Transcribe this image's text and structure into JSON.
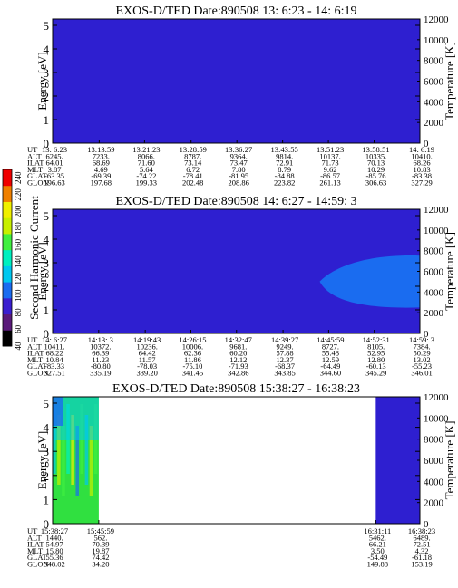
{
  "chart_data": [
    {
      "type": "heatmap",
      "title": "EXOS-D/TED   Date:890508  13: 6:23 - 14: 6:19",
      "ylabel": "Energy [eV]",
      "y2label": "Temperature [K]",
      "ylim": [
        0,
        5
      ],
      "y2lim": [
        0,
        12000
      ],
      "yticks": [
        0,
        1,
        2,
        3,
        4,
        5
      ],
      "y2ticks": [
        0,
        2000,
        4000,
        6000,
        8000,
        10000,
        12000
      ],
      "background_color": "#2e1fd0",
      "regions": [],
      "ephemeris_rows": [
        "UT",
        "ALT",
        "ILAT",
        "MLT",
        "GLAT",
        "GLON"
      ],
      "ephemeris_columns": [
        [
          "13: 6:23",
          "6245.",
          "64.01",
          "3.87",
          "-63.35",
          "196.63"
        ],
        [
          "13:13:59",
          "7233.",
          "68.69",
          "4.69",
          "-69.39",
          "197.68"
        ],
        [
          "13:21:23",
          "8066.",
          "71.60",
          "5.64",
          "-74.22",
          "199.33"
        ],
        [
          "13:28:59",
          "8787.",
          "73.14",
          "6.72",
          "-78.41",
          "202.48"
        ],
        [
          "13:36:27",
          "9364.",
          "73.47",
          "7.80",
          "-81.95",
          "208.86"
        ],
        [
          "13:43:55",
          "9814.",
          "72.91",
          "8.79",
          "-84.88",
          "223.82"
        ],
        [
          "13:51:23",
          "10137.",
          "71.73",
          "9.62",
          "-86.57",
          "261.13"
        ],
        [
          "13:58:51",
          "10335.",
          "70.13",
          "10.29",
          "-85.76",
          "306.63"
        ],
        [
          "14: 6:19",
          "10410.",
          "68.26",
          "10.83",
          "-83.38",
          "327.29"
        ]
      ]
    },
    {
      "type": "heatmap",
      "title": "EXOS-D/TED   Date:890508  14: 6:27 - 14:59: 3",
      "ylabel": "Energy [eV]",
      "y2label": "Temperature [K]",
      "ylim": [
        0,
        5
      ],
      "y2lim": [
        0,
        12000
      ],
      "yticks": [
        0,
        1,
        2,
        3,
        4,
        5
      ],
      "y2ticks": [
        0,
        2000,
        4000,
        6000,
        8000,
        10000,
        12000
      ],
      "background_color": "#2e1fd0",
      "regions": [
        {
          "ut_start": "14:46:00",
          "ut_end": "14:59: 3",
          "energy_min": 1.1,
          "energy_max": 3.3,
          "color": "#1a6cf0"
        }
      ],
      "ephemeris_rows": [
        "UT",
        "ALT",
        "ILAT",
        "MLT",
        "GLAT",
        "GLON"
      ],
      "ephemeris_columns": [
        [
          "14: 6:27",
          "10411.",
          "68.22",
          "10.84",
          "-83.33",
          "327.51"
        ],
        [
          "14:13: 3",
          "10372.",
          "66.39",
          "11.23",
          "-80.80",
          "335.19"
        ],
        [
          "14:19:43",
          "10236.",
          "64.42",
          "11.57",
          "-78.03",
          "339.20"
        ],
        [
          "14:26:15",
          "10006.",
          "62.36",
          "11.86",
          "-75.10",
          "341.45"
        ],
        [
          "14:32:47",
          "9681.",
          "60.20",
          "12.12",
          "-71.93",
          "342.86"
        ],
        [
          "14:39:27",
          "9249.",
          "57.88",
          "12.37",
          "-68.37",
          "343.85"
        ],
        [
          "14:45:59",
          "8727.",
          "55.48",
          "12.59",
          "-64.49",
          "344.60"
        ],
        [
          "14:52:31",
          "8105.",
          "52.95",
          "12.80",
          "-60.13",
          "345.29"
        ],
        [
          "14:59: 3",
          "7384.",
          "50.29",
          "13.02",
          "-55.23",
          "346.01"
        ]
      ]
    },
    {
      "type": "heatmap",
      "title": "EXOS-D/TED   Date:890508  15:38:27 - 16:38:23",
      "ylabel": "Energy [eV]",
      "y2label": "Temperature [K]",
      "ylim": [
        0,
        5
      ],
      "y2lim": [
        0,
        12000
      ],
      "yticks": [
        0,
        1,
        2,
        3,
        4,
        5
      ],
      "y2ticks": [
        0,
        2000,
        4000,
        6000,
        8000,
        10000,
        12000
      ],
      "background_color": "#ffffff",
      "regions": [
        {
          "ut_start": "15:38:27",
          "ut_end": "15:45:59",
          "energy_min": 0,
          "energy_max": 5.5,
          "color": "#30e040"
        },
        {
          "ut_start": "16:31:11",
          "ut_end": "16:38:23",
          "energy_min": 0,
          "energy_max": 5.5,
          "color": "#2e1fd0"
        }
      ],
      "ephemeris_rows": [
        "UT",
        "ALT",
        "ILAT",
        "MLT",
        "GLAT",
        "GLON"
      ],
      "ephemeris_columns": [
        [
          "15:38:27",
          "1440.",
          "54.97",
          "15.80",
          "55.36",
          "348.02"
        ],
        [
          "15:45:59",
          "562.",
          "70.39",
          "19.87",
          "74.42",
          "34.20"
        ],
        [
          "16:31:11",
          "5462.",
          "66.21",
          "3.50",
          "-54.49",
          "149.88"
        ],
        [
          "16:38:23",
          "6489.",
          "72.51",
          "4.32",
          "-61.18",
          "153.19"
        ]
      ]
    }
  ],
  "colorbar": {
    "label": "Second Harmonic Current",
    "ticks": [
      "40",
      "60",
      "80",
      "100",
      "120",
      "140",
      "160",
      "180",
      "200",
      "220",
      "240"
    ],
    "range": [
      40,
      250
    ],
    "colors": [
      "#000000",
      "#5a1a7a",
      "#3a1fd0",
      "#1a6cf0",
      "#00c8f0",
      "#00f0c0",
      "#40f040",
      "#c8f000",
      "#f0f000",
      "#f08000",
      "#f00000"
    ]
  }
}
